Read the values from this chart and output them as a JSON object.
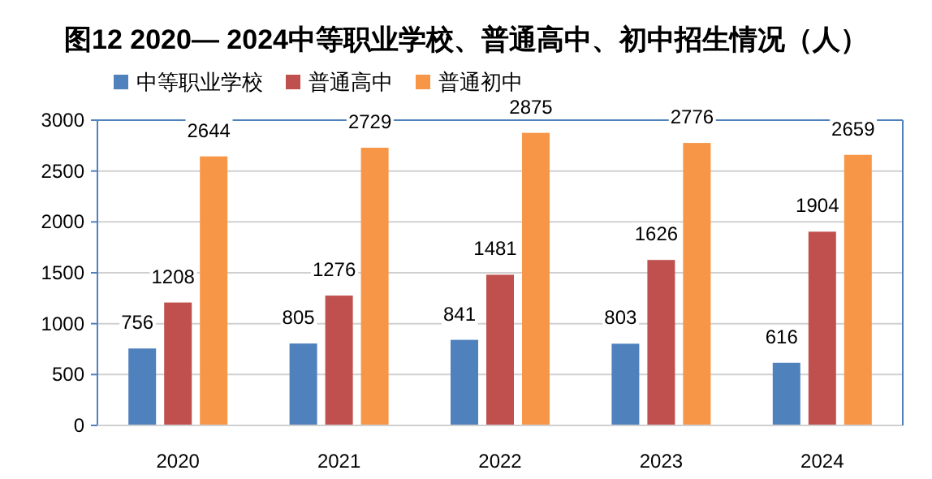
{
  "chart_data": {
    "type": "bar",
    "title": "图12  2020— 2024中等职业学校、普通高中、初中招生情况（人）",
    "categories": [
      "2020",
      "2021",
      "2022",
      "2023",
      "2024"
    ],
    "series": [
      {
        "name": "中等职业学校",
        "color": "#4f81bd",
        "values": [
          756,
          805,
          841,
          803,
          616
        ]
      },
      {
        "name": "普通高中",
        "color": "#c0504d",
        "values": [
          1208,
          1276,
          1481,
          1626,
          1904
        ]
      },
      {
        "name": "普通初中",
        "color": "#f79646",
        "values": [
          2644,
          2729,
          2875,
          2776,
          2659
        ]
      }
    ],
    "ylim": [
      0,
      3000
    ],
    "yticks": [
      0,
      500,
      1000,
      1500,
      2000,
      2500,
      3000
    ],
    "grid": "y",
    "legend": "top left",
    "data_labels": true
  }
}
